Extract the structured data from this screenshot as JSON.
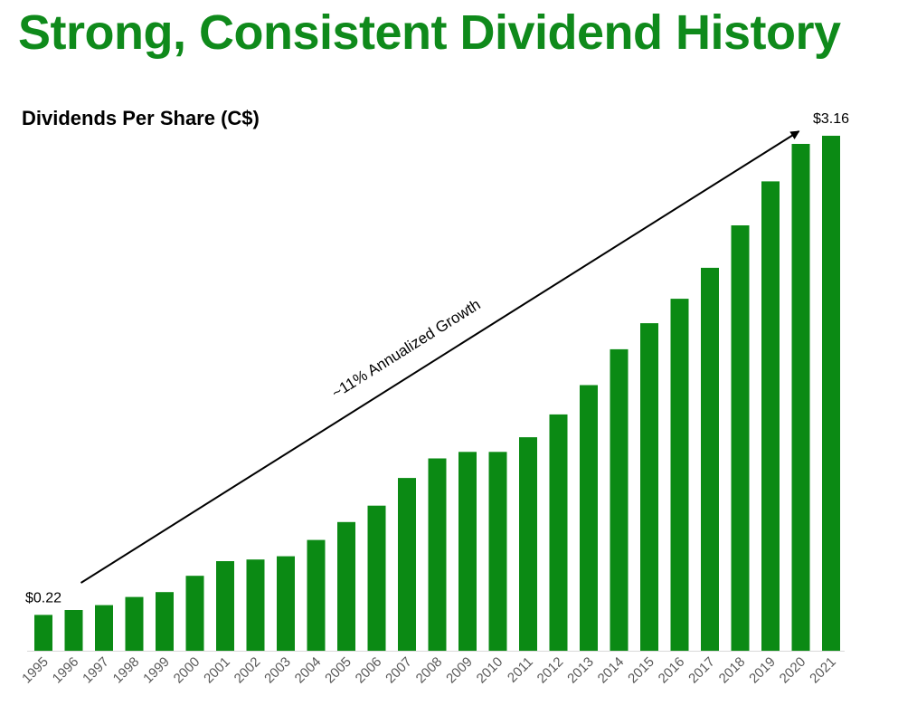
{
  "headline": "Strong, Consistent Dividend History",
  "colors": {
    "brand_green": "#0f8a1b",
    "bar_green": "#0b8a14",
    "text": "#000000"
  },
  "chart_data": {
    "type": "bar",
    "title": "Dividends Per Share (C$)",
    "xlabel": "",
    "ylabel": "",
    "ylim": [
      0,
      3.2
    ],
    "grid": false,
    "legend": "none",
    "categories": [
      "1995",
      "1996",
      "1997",
      "1998",
      "1999",
      "2000",
      "2001",
      "2002",
      "2003",
      "2004",
      "2005",
      "2006",
      "2007",
      "2008",
      "2009",
      "2010",
      "2011",
      "2012",
      "2013",
      "2014",
      "2015",
      "2016",
      "2017",
      "2018",
      "2019",
      "2020",
      "2021"
    ],
    "values": [
      0.22,
      0.25,
      0.28,
      0.33,
      0.36,
      0.46,
      0.55,
      0.56,
      0.58,
      0.68,
      0.79,
      0.89,
      1.06,
      1.18,
      1.22,
      1.22,
      1.31,
      1.45,
      1.63,
      1.85,
      2.01,
      2.16,
      2.35,
      2.61,
      2.88,
      3.11,
      3.16
    ],
    "data_labels": [
      {
        "category": "1995",
        "text": "$0.22"
      },
      {
        "category": "2021",
        "text": "$3.16"
      }
    ],
    "annotation": {
      "text": "~11% Annualized Growth",
      "from_category": "1996",
      "to_category": "2020"
    }
  }
}
